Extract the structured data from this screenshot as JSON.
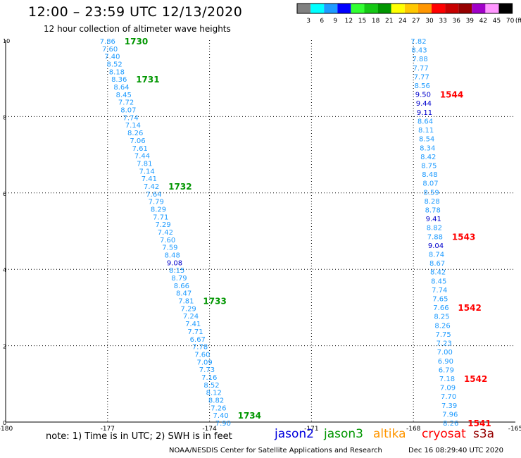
{
  "header": {
    "title": "12:00 – 23:59 UTC 12/13/2020",
    "subtitle": "12 hour collection of altimeter wave heights"
  },
  "color_scale": {
    "labels": [
      "3",
      "6",
      "9",
      "12",
      "15",
      "18",
      "21",
      "24",
      "27",
      "30",
      "33",
      "36",
      "39",
      "42",
      "45",
      "70"
    ],
    "unit": "(ft)",
    "colors": [
      "#808080",
      "#00ffff",
      "#1e9bff",
      "#0000ff",
      "#32ff32",
      "#14c814",
      "#009600",
      "#ffff00",
      "#ffc800",
      "#ff9600",
      "#ff0000",
      "#c80000",
      "#960000",
      "#a000c8",
      "#ff96ff",
      "#000000"
    ]
  },
  "footer": {
    "note": "note:  1) Time is in UTC; 2) SWH is in feet",
    "satellites": [
      {
        "name": "jason2",
        "color": "#0000dd"
      },
      {
        "name": "jason3",
        "color": "#009600"
      },
      {
        "name": "altika",
        "color": "#ff9600"
      },
      {
        "name": "cryosat",
        "color": "#ff0000"
      },
      {
        "name": "s3a",
        "color": "#960000"
      }
    ],
    "credit": "NOAA/NESDIS Center for Satellite Applications and Research",
    "timestamp": "Dec 16 08:29:40 UTC 2020"
  },
  "chart_data": {
    "type": "scatter",
    "title": "12:00 – 23:59 UTC 12/13/2020",
    "subtitle": "12 hour collection of altimeter wave heights",
    "xlim": [
      -180,
      -165
    ],
    "ylim": [
      0,
      10
    ],
    "x_ticks": [
      -180,
      -177,
      -174,
      -171,
      -168,
      -165
    ],
    "x_tick_labels": [
      "-180",
      "-177",
      "-174",
      "-171",
      "-168",
      "-165"
    ],
    "y_ticks": [
      0,
      2,
      4,
      6,
      8,
      10
    ],
    "y_tick_labels": [
      "0",
      "2",
      "4",
      "6",
      "8",
      "10"
    ],
    "grid": true,
    "series": [
      {
        "name": "jason3",
        "label_color": "#009600",
        "x_start": -177.0,
        "x_end": -173.6,
        "y_start": 10.0,
        "y_end": 0.0,
        "values": [
          "7.86",
          "7.60",
          "7.40",
          "8.52",
          "8.18",
          "8.36",
          "8.64",
          "8.45",
          "7.72",
          "8.07",
          "7.74",
          "7.14",
          "8.26",
          "7.06",
          "7.61",
          "7.44",
          "7.81",
          "7.14",
          "7.41",
          "7.42",
          "7.64",
          "7.79",
          "8.29",
          "7.71",
          "7.29",
          "7.42",
          "7.60",
          "7.59",
          "8.48",
          "9.08",
          "8.15",
          "8.79",
          "8.66",
          "8.47",
          "7.81",
          "7.29",
          "7.24",
          "7.41",
          "7.71",
          "6.67",
          "7.78",
          "7.60",
          "7.09",
          "7.73",
          "7.16",
          "8.52",
          "8.12",
          "8.82",
          "7.26",
          "7.40",
          "7.90"
        ],
        "pass_labels": [
          {
            "text": "1730",
            "at_index": 0
          },
          {
            "text": "1731",
            "at_index": 5
          },
          {
            "text": "1732",
            "at_index": 19
          },
          {
            "text": "1733",
            "at_index": 34
          },
          {
            "text": "1734",
            "at_index": 49
          }
        ]
      },
      {
        "name": "cryosat",
        "label_color": "#ff0000",
        "x_start": -167.85,
        "x_end": -166.9,
        "y_start": 10.0,
        "y_end": 0.0,
        "values": [
          "7.82",
          "8.43",
          "7.88",
          "7.77",
          "7.77",
          "8.56",
          "9.50",
          "9.44",
          "9.11",
          "8.64",
          "8.11",
          "8.54",
          "8.34",
          "8.42",
          "8.75",
          "8.48",
          "8.07",
          "8.59",
          "8.28",
          "8.78",
          "9.41",
          "8.82",
          "7.88",
          "9.04",
          "8.74",
          "8.67",
          "8.42",
          "8.45",
          "7.74",
          "7.65",
          "7.66",
          "8.25",
          "8.26",
          "7.75",
          "7.23",
          "7.00",
          "6.90",
          "6.79",
          "7.18",
          "7.09",
          "7.70",
          "7.39",
          "7.96",
          "8.26"
        ],
        "pass_labels": [
          {
            "text": "1544",
            "at_index": 6
          },
          {
            "text": "1543",
            "at_index": 22
          },
          {
            "text": "1542",
            "at_index": 30
          },
          {
            "text": "1542",
            "at_index": 38
          },
          {
            "text": "1541",
            "at_index": 43
          }
        ]
      }
    ]
  }
}
